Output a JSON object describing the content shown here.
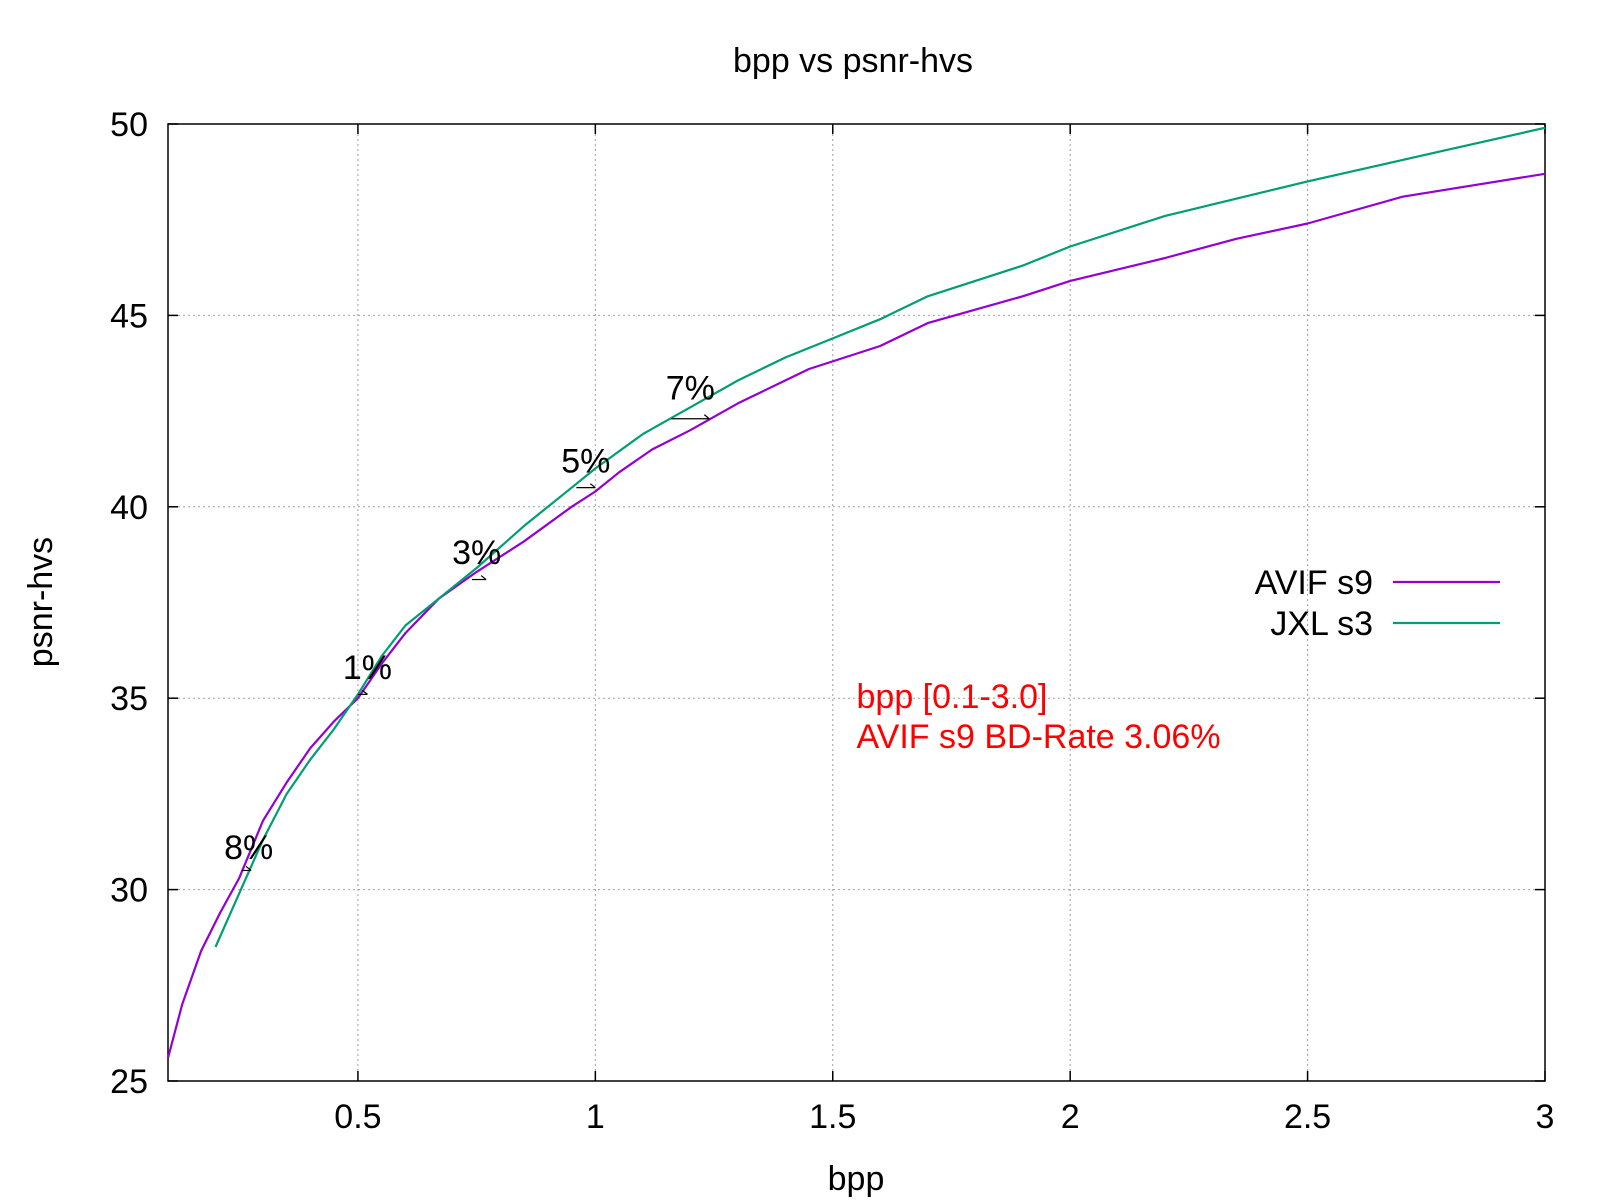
{
  "chart_data": {
    "type": "line",
    "title": "bpp vs psnr-hvs",
    "xlabel": "bpp",
    "ylabel": "psnr-hvs",
    "xlim": [
      0.1,
      3.0
    ],
    "ylim": [
      25,
      50
    ],
    "xticks": [
      {
        "value": 0.5,
        "label": "0.5"
      },
      {
        "value": 1.0,
        "label": "1"
      },
      {
        "value": 1.5,
        "label": "1.5"
      },
      {
        "value": 2.0,
        "label": "2"
      },
      {
        "value": 2.5,
        "label": "2.5"
      },
      {
        "value": 3.0,
        "label": "3"
      }
    ],
    "yticks": [
      {
        "value": 25,
        "label": "25"
      },
      {
        "value": 30,
        "label": "30"
      },
      {
        "value": 35,
        "label": "35"
      },
      {
        "value": 40,
        "label": "40"
      },
      {
        "value": 45,
        "label": "45"
      },
      {
        "value": 50,
        "label": "50"
      }
    ],
    "grid": true,
    "legend_position": "right",
    "series": [
      {
        "name": "AVIF s9",
        "color": "#9400d3",
        "points": [
          [
            0.1,
            25.6
          ],
          [
            0.13,
            27.0
          ],
          [
            0.17,
            28.4
          ],
          [
            0.21,
            29.4
          ],
          [
            0.25,
            30.3
          ],
          [
            0.3,
            31.8
          ],
          [
            0.35,
            32.8
          ],
          [
            0.4,
            33.7
          ],
          [
            0.45,
            34.4
          ],
          [
            0.5,
            35.0
          ],
          [
            0.55,
            35.9
          ],
          [
            0.6,
            36.7
          ],
          [
            0.67,
            37.6
          ],
          [
            0.75,
            38.3
          ],
          [
            0.85,
            39.1
          ],
          [
            0.95,
            40.0
          ],
          [
            1.0,
            40.4
          ],
          [
            1.05,
            40.9
          ],
          [
            1.12,
            41.5
          ],
          [
            1.2,
            42.0
          ],
          [
            1.3,
            42.7
          ],
          [
            1.45,
            43.6
          ],
          [
            1.6,
            44.2
          ],
          [
            1.7,
            44.8
          ],
          [
            1.9,
            45.5
          ],
          [
            2.0,
            45.9
          ],
          [
            2.2,
            46.5
          ],
          [
            2.35,
            47.0
          ],
          [
            2.5,
            47.4
          ],
          [
            2.7,
            48.1
          ],
          [
            3.0,
            48.7
          ]
        ]
      },
      {
        "name": "JXL s3",
        "color": "#009e73",
        "points": [
          [
            0.2,
            28.5
          ],
          [
            0.25,
            29.9
          ],
          [
            0.3,
            31.3
          ],
          [
            0.35,
            32.5
          ],
          [
            0.4,
            33.4
          ],
          [
            0.45,
            34.2
          ],
          [
            0.5,
            35.1
          ],
          [
            0.55,
            36.1
          ],
          [
            0.6,
            36.9
          ],
          [
            0.67,
            37.6
          ],
          [
            0.75,
            38.4
          ],
          [
            0.85,
            39.5
          ],
          [
            0.95,
            40.5
          ],
          [
            1.0,
            41.0
          ],
          [
            1.1,
            41.9
          ],
          [
            1.2,
            42.6
          ],
          [
            1.3,
            43.3
          ],
          [
            1.4,
            43.9
          ],
          [
            1.5,
            44.4
          ],
          [
            1.6,
            44.9
          ],
          [
            1.7,
            45.5
          ],
          [
            1.9,
            46.3
          ],
          [
            2.0,
            46.8
          ],
          [
            2.2,
            47.6
          ],
          [
            2.5,
            48.5
          ],
          [
            2.75,
            49.2
          ],
          [
            3.0,
            49.9
          ]
        ]
      }
    ],
    "annotations": [
      {
        "text": "8%",
        "x": 0.27,
        "y": 30.8,
        "bracket": [
          0.255,
          0.275,
          30.5
        ]
      },
      {
        "text": "1%",
        "x": 0.52,
        "y": 35.5,
        "bracket": [
          0.5,
          0.52,
          35.1
        ]
      },
      {
        "text": "3%",
        "x": 0.75,
        "y": 38.5,
        "bracket": [
          0.74,
          0.77,
          38.1
        ]
      },
      {
        "text": "5%",
        "x": 0.98,
        "y": 40.9,
        "bracket": [
          0.96,
          1.0,
          40.5
        ]
      },
      {
        "text": "7%",
        "x": 1.2,
        "y": 42.8,
        "bracket": [
          1.16,
          1.24,
          42.3
        ]
      }
    ],
    "note": {
      "lines": [
        "bpp [0.1-3.0]",
        "AVIF s9 BD-Rate 3.06%"
      ],
      "color": "#ff0000",
      "x": 1.55,
      "y": 35.0
    }
  }
}
